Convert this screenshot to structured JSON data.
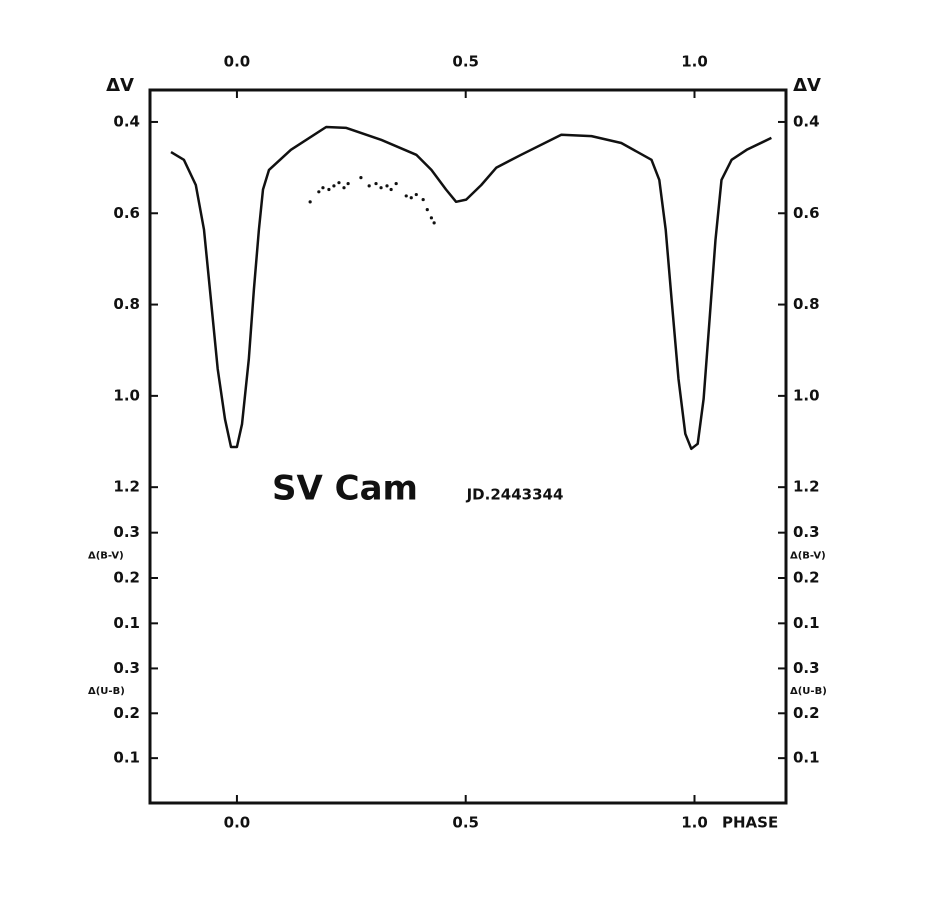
{
  "chart_data": [
    {
      "type": "line",
      "title": "SV Cam",
      "subtitle": "JD.2443344",
      "ylabel": "ΔV",
      "xlabel": "PHASE",
      "xlim": [
        -0.19,
        1.2
      ],
      "xticks": [
        {
          "value": 0,
          "label": "0.0"
        },
        0.5,
        {
          "value": 1,
          "label": "1.0"
        }
      ],
      "ylim": [
        1.25,
        0.33
      ],
      "yticks": [
        0.4,
        0.6,
        0.8,
        {
          "value": 1,
          "label": "1.0"
        },
        1.2
      ],
      "series": [
        {
          "type": "line",
          "color": "#111111",
          "x": [
            -0.144,
            -0.116,
            -0.09,
            -0.072,
            -0.057,
            -0.042,
            -0.026,
            -0.013,
            0.0,
            0.011,
            0.026,
            0.037,
            0.048,
            0.057,
            0.07,
            0.118,
            0.195,
            0.239,
            0.315,
            0.392,
            0.425,
            0.457,
            0.479,
            0.501,
            0.534,
            0.567,
            0.621,
            0.709,
            0.775,
            0.84,
            0.906,
            0.923,
            0.937,
            0.95,
            0.965,
            0.98,
            0.993,
            1.007,
            1.02,
            1.033,
            1.046,
            1.059,
            1.081,
            1.114,
            1.168
          ],
          "values": [
            0.466,
            0.483,
            0.538,
            0.636,
            0.789,
            0.941,
            1.051,
            1.112,
            1.112,
            1.062,
            0.92,
            0.767,
            0.636,
            0.548,
            0.505,
            0.461,
            0.411,
            0.413,
            0.439,
            0.472,
            0.505,
            0.548,
            0.575,
            0.57,
            0.538,
            0.5,
            0.472,
            0.428,
            0.431,
            0.446,
            0.483,
            0.527,
            0.636,
            0.789,
            0.963,
            1.083,
            1.116,
            1.105,
            1.007,
            0.832,
            0.658,
            0.527,
            0.483,
            0.461,
            0.435
          ]
        },
        {
          "type": "scatter",
          "color": "#111111",
          "x": [
            0.16,
            0.179,
            0.188,
            0.201,
            0.212,
            0.223,
            0.234,
            0.243,
            0.271,
            0.289,
            0.304,
            0.315,
            0.328,
            0.337,
            0.348,
            0.37,
            0.381,
            0.392,
            0.407,
            0.416,
            0.425,
            0.431
          ],
          "values": [
            0.575,
            0.553,
            0.544,
            0.548,
            0.54,
            0.533,
            0.544,
            0.535,
            0.522,
            0.54,
            0.535,
            0.544,
            0.54,
            0.548,
            0.535,
            0.562,
            0.566,
            0.559,
            0.57,
            0.592,
            0.61,
            0.621
          ]
        }
      ]
    },
    {
      "type": "line",
      "ylabel": "Δ(B-V)",
      "ylim": [
        0.05,
        0.35
      ],
      "yticks": [
        0.3,
        0.2,
        0.1
      ]
    },
    {
      "type": "line",
      "ylabel": "Δ(U-B)",
      "ylim": [
        0,
        0.35
      ],
      "yticks": [
        0.3,
        0.2,
        0.1
      ]
    }
  ]
}
